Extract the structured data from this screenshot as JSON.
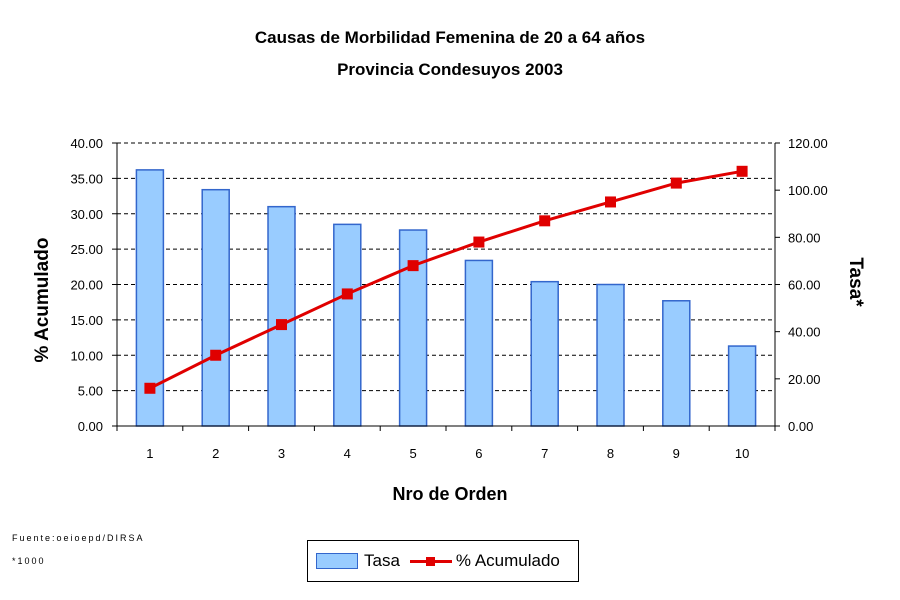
{
  "chart_data": {
    "type": "bar+line",
    "title": "Causas de Morbilidad Femenina de 20 a 64 años",
    "subtitle": "Provincia Condesuyos 2003",
    "xlabel": "Nro de Orden",
    "ylabel_left": "% Acumulado",
    "ylabel_right": "Tasa*",
    "categories": [
      "1",
      "2",
      "3",
      "4",
      "5",
      "6",
      "7",
      "8",
      "9",
      "10"
    ],
    "left_axis": {
      "ylim": [
        0,
        40
      ],
      "ticks": [
        "0.00",
        "5.00",
        "10.00",
        "15.00",
        "20.00",
        "25.00",
        "30.00",
        "35.00",
        "40.00"
      ]
    },
    "right_axis": {
      "ylim": [
        0,
        120
      ],
      "ticks": [
        "0.00",
        "20.00",
        "40.00",
        "60.00",
        "80.00",
        "100.00",
        "120.00"
      ]
    },
    "series": [
      {
        "name": "Tasa",
        "kind": "bar",
        "color": "#99ccff",
        "border": "#3366cc",
        "axis": "left",
        "values": [
          36.2,
          33.4,
          31.0,
          28.5,
          27.7,
          23.4,
          20.4,
          20.0,
          17.7,
          11.3
        ]
      },
      {
        "name": "% Acumulado",
        "kind": "line",
        "color": "#e00000",
        "axis": "right",
        "values": [
          16.0,
          30.0,
          43.0,
          56.0,
          68.0,
          78.0,
          87.0,
          95.0,
          103.0,
          108.0
        ]
      }
    ],
    "grid": "horizontal dashed",
    "legend_position": "bottom"
  },
  "footnotes": {
    "source": "Fuente:oeioepd/DIRSA",
    "unit": "*1000"
  }
}
